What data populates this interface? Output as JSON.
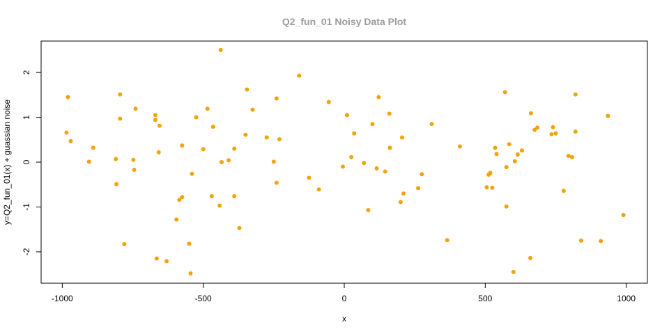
{
  "colors": {
    "points": "#f5a10a",
    "title": "#9a9a9a",
    "axis": "#000000"
  },
  "chart_data": {
    "type": "scatter",
    "title": "Q2_fun_01 Noisy Data Plot",
    "xlabel": "x",
    "ylabel": "y=Q2_fun_01(x) + guassian noise",
    "xlim": [
      -1075,
      1075
    ],
    "ylim": [
      -2.7,
      2.7
    ],
    "xticks": [
      -1000,
      -500,
      0,
      500,
      1000
    ],
    "xtick_labels": [
      "-1000",
      "-500",
      "0",
      "500",
      "1000"
    ],
    "yticks": [
      -2,
      -1,
      0,
      1,
      2
    ],
    "ytick_labels": [
      "-2",
      "-1",
      "0",
      "1",
      "2"
    ],
    "grid": false,
    "points": [
      [
        -980,
        1.45
      ],
      [
        -985,
        0.66
      ],
      [
        -970,
        0.47
      ],
      [
        -905,
        0.01
      ],
      [
        -890,
        0.32
      ],
      [
        -810,
        0.07
      ],
      [
        -808,
        -0.49
      ],
      [
        -795,
        1.51
      ],
      [
        -795,
        0.97
      ],
      [
        -780,
        -1.83
      ],
      [
        -748,
        0.05
      ],
      [
        -745,
        -0.17
      ],
      [
        -740,
        1.19
      ],
      [
        -670,
        1.05
      ],
      [
        -670,
        0.94
      ],
      [
        -665,
        -2.15
      ],
      [
        -655,
        0.81
      ],
      [
        -658,
        0.22
      ],
      [
        -630,
        -2.21
      ],
      [
        -595,
        -1.28
      ],
      [
        -585,
        -0.84
      ],
      [
        -575,
        -0.78
      ],
      [
        -575,
        0.37
      ],
      [
        -550,
        -1.82
      ],
      [
        -545,
        -2.48
      ],
      [
        -540,
        -0.26
      ],
      [
        -525,
        1.0
      ],
      [
        -500,
        0.29
      ],
      [
        -485,
        1.19
      ],
      [
        -470,
        -0.76
      ],
      [
        -465,
        0.79
      ],
      [
        -438,
        2.5
      ],
      [
        -442,
        -0.97
      ],
      [
        -435,
        0.0
      ],
      [
        -410,
        0.04
      ],
      [
        -390,
        0.3
      ],
      [
        -390,
        -0.76
      ],
      [
        -372,
        -1.47
      ],
      [
        -350,
        0.61
      ],
      [
        -345,
        1.62
      ],
      [
        -325,
        1.17
      ],
      [
        -275,
        0.55
      ],
      [
        -250,
        0.01
      ],
      [
        -240,
        1.42
      ],
      [
        -240,
        -0.46
      ],
      [
        -230,
        0.51
      ],
      [
        -160,
        1.93
      ],
      [
        -125,
        -0.35
      ],
      [
        -90,
        -0.61
      ],
      [
        -55,
        1.34
      ],
      [
        -5,
        -0.1
      ],
      [
        10,
        1.05
      ],
      [
        25,
        0.11
      ],
      [
        35,
        0.64
      ],
      [
        70,
        -0.02
      ],
      [
        85,
        -1.07
      ],
      [
        100,
        0.85
      ],
      [
        115,
        -0.14
      ],
      [
        122,
        1.45
      ],
      [
        145,
        -0.21
      ],
      [
        160,
        1.08
      ],
      [
        162,
        0.32
      ],
      [
        200,
        -0.89
      ],
      [
        205,
        0.55
      ],
      [
        210,
        -0.7
      ],
      [
        262,
        -0.58
      ],
      [
        275,
        -0.27
      ],
      [
        310,
        0.85
      ],
      [
        365,
        -1.74
      ],
      [
        410,
        0.35
      ],
      [
        505,
        -0.56
      ],
      [
        512,
        -0.28
      ],
      [
        518,
        -0.24
      ],
      [
        525,
        -0.57
      ],
      [
        535,
        0.32
      ],
      [
        540,
        0.18
      ],
      [
        570,
        1.56
      ],
      [
        575,
        -0.11
      ],
      [
        575,
        -0.99
      ],
      [
        585,
        0.4
      ],
      [
        600,
        -2.45
      ],
      [
        605,
        0.02
      ],
      [
        615,
        0.17
      ],
      [
        630,
        0.26
      ],
      [
        660,
        -2.14
      ],
      [
        662,
        1.09
      ],
      [
        675,
        0.72
      ],
      [
        685,
        0.77
      ],
      [
        735,
        0.62
      ],
      [
        740,
        0.78
      ],
      [
        750,
        0.64
      ],
      [
        778,
        -0.64
      ],
      [
        795,
        0.14
      ],
      [
        808,
        0.11
      ],
      [
        820,
        1.51
      ],
      [
        820,
        0.68
      ],
      [
        840,
        -1.75
      ],
      [
        910,
        -1.76
      ],
      [
        935,
        1.03
      ],
      [
        990,
        -1.18
      ]
    ]
  }
}
